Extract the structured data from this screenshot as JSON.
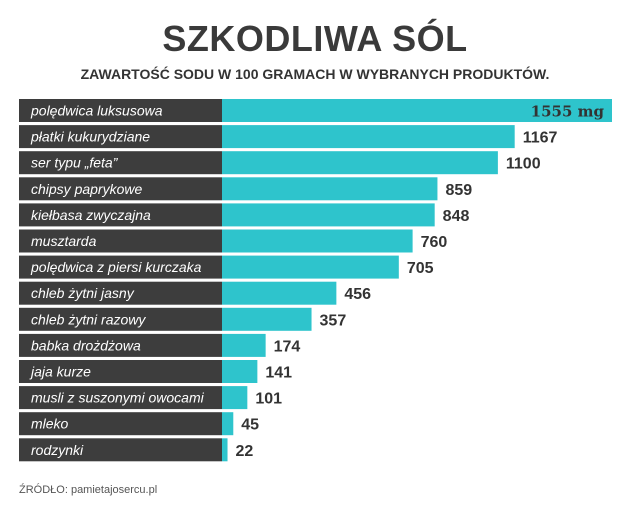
{
  "chart_data": {
    "type": "bar",
    "orientation": "horizontal",
    "title": "SZKODLIWA SÓL",
    "subtitle": "ZAWARTOŚĆ SODU W 100 GRAMACH W WYBRANYCH PRODUKTÓW.",
    "categories": [
      "polędwica luksusowa",
      "płatki kukurydziane",
      "ser typu „feta”",
      "chipsy paprykowe",
      "kiełbasa zwyczajna",
      "musztarda",
      "polędwica z piersi kurczaka",
      "chleb żytni jasny",
      "chleb żytni razowy",
      "babka drożdżowa",
      "jaja kurze",
      "musli z suszonymi owocami",
      "mleko",
      "rodzynki"
    ],
    "values": [
      1555,
      1167,
      1100,
      859,
      848,
      760,
      705,
      456,
      357,
      174,
      141,
      101,
      45,
      22
    ],
    "value_labels": [
      "1555 mg",
      "1167",
      "1100",
      "859",
      "848",
      "760",
      "705",
      "456",
      "357",
      "174",
      "141",
      "101",
      "45",
      "22"
    ],
    "xlim": [
      0,
      1555
    ],
    "unit": "mg",
    "colors": {
      "bar": "#2ec4cc",
      "label_bg": "#3d3d3d",
      "label_text": "#ffffff",
      "value_text": "#333333"
    }
  },
  "source": "ŹRÓDŁO: pamietajosercu.pl"
}
